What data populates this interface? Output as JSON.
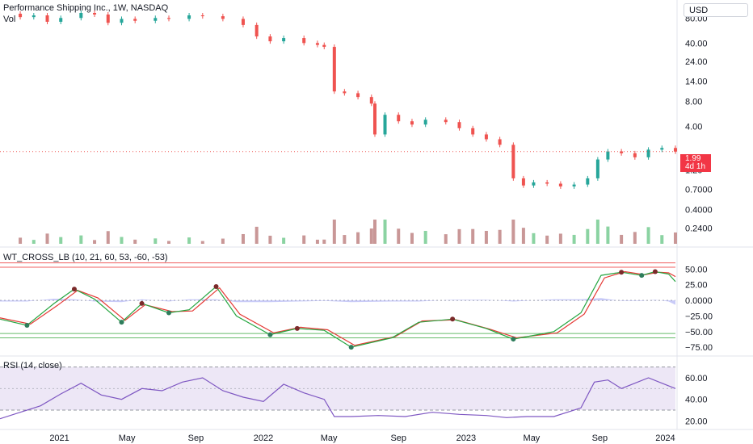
{
  "header": {
    "title": "Performance Shipping Inc., 1W, NASDAQ",
    "vol_label": "Vol"
  },
  "currency": "USD",
  "price_badge": {
    "price": "1.99",
    "countdown": "4d 1h"
  },
  "colors": {
    "up": "#26a69a",
    "down": "#ef5350",
    "volume_up": "#8bd3a2",
    "volume_down": "#c99797",
    "wt1": "#26a641",
    "wt2": "#e53935",
    "wt_hist": "#b2b5f5",
    "rsi": "#7e57c2",
    "band": "#ede7f6",
    "level_red": "#f06060",
    "level_green": "#66bb6a",
    "cross_up": "#2e7d5b",
    "cross_down": "#7b2a2a"
  },
  "chart_data": [
    {
      "type": "candlestick",
      "title": "Performance Shipping Inc., 1W, NASDAQ",
      "scale": "log",
      "yticks": [
        "80.00",
        "40.00",
        "24.00",
        "14.00",
        "8.00",
        "4.00",
        "1.20",
        "0.7000",
        "0.4000",
        "0.2400"
      ],
      "xticks": [
        "2021",
        "May",
        "Sep",
        "2022",
        "May",
        "Sep",
        "2023",
        "May",
        "Sep",
        "2024"
      ],
      "last_price": 1.99,
      "close_series": [
        {
          "t": 0.0,
          "v": 90
        },
        {
          "t": 0.03,
          "v": 82
        },
        {
          "t": 0.05,
          "v": 86
        },
        {
          "t": 0.07,
          "v": 72
        },
        {
          "t": 0.09,
          "v": 80
        },
        {
          "t": 0.12,
          "v": 92
        },
        {
          "t": 0.14,
          "v": 88
        },
        {
          "t": 0.16,
          "v": 70
        },
        {
          "t": 0.18,
          "v": 78
        },
        {
          "t": 0.2,
          "v": 74
        },
        {
          "t": 0.23,
          "v": 80
        },
        {
          "t": 0.25,
          "v": 78
        },
        {
          "t": 0.28,
          "v": 86
        },
        {
          "t": 0.3,
          "v": 84
        },
        {
          "t": 0.33,
          "v": 78
        },
        {
          "t": 0.36,
          "v": 66
        },
        {
          "t": 0.38,
          "v": 48
        },
        {
          "t": 0.4,
          "v": 42
        },
        {
          "t": 0.42,
          "v": 46
        },
        {
          "t": 0.45,
          "v": 40
        },
        {
          "t": 0.47,
          "v": 38
        },
        {
          "t": 0.48,
          "v": 36
        },
        {
          "t": 0.495,
          "v": 10.5
        },
        {
          "t": 0.51,
          "v": 10
        },
        {
          "t": 0.53,
          "v": 9
        },
        {
          "t": 0.55,
          "v": 7.5
        },
        {
          "t": 0.555,
          "v": 3.2
        },
        {
          "t": 0.57,
          "v": 5.5
        },
        {
          "t": 0.59,
          "v": 4.6
        },
        {
          "t": 0.61,
          "v": 4.2
        },
        {
          "t": 0.63,
          "v": 4.8
        },
        {
          "t": 0.66,
          "v": 4.5
        },
        {
          "t": 0.68,
          "v": 3.8
        },
        {
          "t": 0.7,
          "v": 3.2
        },
        {
          "t": 0.72,
          "v": 2.8
        },
        {
          "t": 0.74,
          "v": 2.4
        },
        {
          "t": 0.76,
          "v": 0.95
        },
        {
          "t": 0.775,
          "v": 0.78
        },
        {
          "t": 0.79,
          "v": 0.85
        },
        {
          "t": 0.81,
          "v": 0.82
        },
        {
          "t": 0.83,
          "v": 0.76
        },
        {
          "t": 0.85,
          "v": 0.8
        },
        {
          "t": 0.87,
          "v": 0.95
        },
        {
          "t": 0.885,
          "v": 1.6
        },
        {
          "t": 0.9,
          "v": 2.0
        },
        {
          "t": 0.92,
          "v": 1.9
        },
        {
          "t": 0.94,
          "v": 1.7
        },
        {
          "t": 0.96,
          "v": 2.1
        },
        {
          "t": 0.98,
          "v": 2.2
        },
        {
          "t": 1.0,
          "v": 1.99
        }
      ]
    },
    {
      "type": "line",
      "title": "WT_CROSS_LB (10, 21, 60, 53, -60, -53)",
      "yticks": [
        "50.00",
        "25.00",
        "0.0000",
        "−25.00",
        "−50.00",
        "−75.00"
      ],
      "ylim": [
        -80,
        75
      ],
      "levels": [
        60,
        53,
        -53,
        -60
      ],
      "series": [
        {
          "name": "wt1",
          "points": [
            {
              "t": 0.0,
              "v": -30
            },
            {
              "t": 0.04,
              "v": -40
            },
            {
              "t": 0.08,
              "v": -5
            },
            {
              "t": 0.11,
              "v": 18
            },
            {
              "t": 0.14,
              "v": 2
            },
            {
              "t": 0.18,
              "v": -35
            },
            {
              "t": 0.21,
              "v": -5
            },
            {
              "t": 0.25,
              "v": -20
            },
            {
              "t": 0.28,
              "v": -15
            },
            {
              "t": 0.32,
              "v": 22
            },
            {
              "t": 0.35,
              "v": -25
            },
            {
              "t": 0.4,
              "v": -55
            },
            {
              "t": 0.44,
              "v": -45
            },
            {
              "t": 0.48,
              "v": -48
            },
            {
              "t": 0.52,
              "v": -75
            },
            {
              "t": 0.58,
              "v": -60
            },
            {
              "t": 0.62,
              "v": -35
            },
            {
              "t": 0.67,
              "v": -30
            },
            {
              "t": 0.72,
              "v": -45
            },
            {
              "t": 0.76,
              "v": -62
            },
            {
              "t": 0.82,
              "v": -50
            },
            {
              "t": 0.86,
              "v": -20
            },
            {
              "t": 0.89,
              "v": 40
            },
            {
              "t": 0.92,
              "v": 45
            },
            {
              "t": 0.95,
              "v": 40
            },
            {
              "t": 0.97,
              "v": 46
            },
            {
              "t": 0.99,
              "v": 42
            },
            {
              "t": 1.0,
              "v": 30
            }
          ]
        },
        {
          "name": "wt2",
          "points": [
            {
              "t": 0.0,
              "v": -28
            },
            {
              "t": 0.045,
              "v": -38
            },
            {
              "t": 0.085,
              "v": -8
            },
            {
              "t": 0.115,
              "v": 16
            },
            {
              "t": 0.145,
              "v": 4
            },
            {
              "t": 0.185,
              "v": -32
            },
            {
              "t": 0.215,
              "v": -7
            },
            {
              "t": 0.255,
              "v": -18
            },
            {
              "t": 0.285,
              "v": -17
            },
            {
              "t": 0.325,
              "v": 20
            },
            {
              "t": 0.355,
              "v": -22
            },
            {
              "t": 0.405,
              "v": -52
            },
            {
              "t": 0.445,
              "v": -43
            },
            {
              "t": 0.485,
              "v": -47
            },
            {
              "t": 0.525,
              "v": -72
            },
            {
              "t": 0.585,
              "v": -58
            },
            {
              "t": 0.625,
              "v": -33
            },
            {
              "t": 0.675,
              "v": -31
            },
            {
              "t": 0.725,
              "v": -46
            },
            {
              "t": 0.765,
              "v": -60
            },
            {
              "t": 0.825,
              "v": -52
            },
            {
              "t": 0.865,
              "v": -22
            },
            {
              "t": 0.895,
              "v": 36
            },
            {
              "t": 0.925,
              "v": 46
            },
            {
              "t": 0.955,
              "v": 41
            },
            {
              "t": 0.975,
              "v": 45
            },
            {
              "t": 0.99,
              "v": 44
            },
            {
              "t": 1.0,
              "v": 38
            }
          ]
        }
      ]
    },
    {
      "type": "line",
      "title": "RSI (14, close)",
      "yticks": [
        "60.00",
        "40.00",
        "20.00"
      ],
      "ylim": [
        15,
        75
      ],
      "band": [
        30,
        70
      ],
      "midline": 50,
      "series": [
        {
          "name": "rsi",
          "points": [
            {
              "t": 0.0,
              "v": 22
            },
            {
              "t": 0.03,
              "v": 28
            },
            {
              "t": 0.06,
              "v": 34
            },
            {
              "t": 0.09,
              "v": 45
            },
            {
              "t": 0.12,
              "v": 55
            },
            {
              "t": 0.15,
              "v": 44
            },
            {
              "t": 0.18,
              "v": 40
            },
            {
              "t": 0.21,
              "v": 50
            },
            {
              "t": 0.24,
              "v": 48
            },
            {
              "t": 0.27,
              "v": 56
            },
            {
              "t": 0.3,
              "v": 60
            },
            {
              "t": 0.33,
              "v": 48
            },
            {
              "t": 0.36,
              "v": 42
            },
            {
              "t": 0.39,
              "v": 38
            },
            {
              "t": 0.42,
              "v": 54
            },
            {
              "t": 0.45,
              "v": 46
            },
            {
              "t": 0.48,
              "v": 40
            },
            {
              "t": 0.495,
              "v": 24
            },
            {
              "t": 0.52,
              "v": 24
            },
            {
              "t": 0.56,
              "v": 25
            },
            {
              "t": 0.6,
              "v": 24
            },
            {
              "t": 0.64,
              "v": 28
            },
            {
              "t": 0.68,
              "v": 26
            },
            {
              "t": 0.72,
              "v": 25
            },
            {
              "t": 0.75,
              "v": 23
            },
            {
              "t": 0.78,
              "v": 24
            },
            {
              "t": 0.82,
              "v": 24
            },
            {
              "t": 0.86,
              "v": 32
            },
            {
              "t": 0.88,
              "v": 56
            },
            {
              "t": 0.9,
              "v": 58
            },
            {
              "t": 0.92,
              "v": 50
            },
            {
              "t": 0.94,
              "v": 55
            },
            {
              "t": 0.96,
              "v": 60
            },
            {
              "t": 0.98,
              "v": 55
            },
            {
              "t": 1.0,
              "v": 50
            }
          ]
        }
      ]
    }
  ]
}
